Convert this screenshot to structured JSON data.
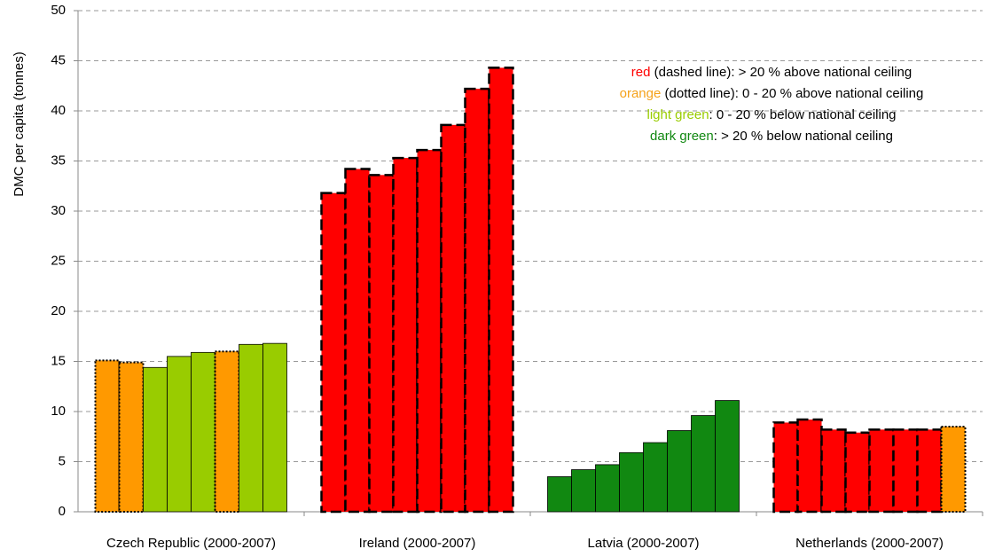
{
  "chart_data": {
    "type": "bar",
    "y_label": "DMC per capita (tonnes)",
    "categories": [
      "Czech Republic (2000-2007)",
      "Ireland (2000-2007)",
      "Latvia (2000-2007)",
      "Netherlands (2000-2007)"
    ],
    "groups": [
      {
        "values": [
          15.1,
          14.9,
          14.4,
          15.5,
          15.9,
          16.0,
          16.7,
          16.8
        ],
        "colors": [
          "#ff9900",
          "#ff9900",
          "#99cc00",
          "#99cc00",
          "#99cc00",
          "#ff9900",
          "#99cc00",
          "#99cc00"
        ]
      },
      {
        "values": [
          31.8,
          34.2,
          33.6,
          35.3,
          36.1,
          38.6,
          42.2,
          44.3
        ],
        "colors": [
          "#ff0000",
          "#ff0000",
          "#ff0000",
          "#ff0000",
          "#ff0000",
          "#ff0000",
          "#ff0000",
          "#ff0000"
        ]
      },
      {
        "values": [
          3.5,
          4.2,
          4.7,
          5.9,
          6.9,
          8.1,
          9.6,
          11.1
        ],
        "colors": [
          "#118811",
          "#118811",
          "#118811",
          "#118811",
          "#118811",
          "#118811",
          "#118811",
          "#118811"
        ]
      },
      {
        "values": [
          8.9,
          9.2,
          8.2,
          7.9,
          8.2,
          8.2,
          8.2,
          8.5
        ],
        "colors": [
          "#ff0000",
          "#ff0000",
          "#ff0000",
          "#ff0000",
          "#ff0000",
          "#ff0000",
          "#ff0000",
          "#ff9900"
        ]
      }
    ],
    "legend": [
      {
        "word": "red",
        "text": " (dashed line): > 20 % above national ceiling",
        "text_color": "#ff0000",
        "fill": "#ff0000",
        "border": "dashed"
      },
      {
        "word": "orange",
        "text": " (dotted line): 0 - 20 % above national ceiling",
        "text_color": "#f5a21b",
        "fill": "#ff9900",
        "border": "dotted"
      },
      {
        "word": "light green",
        "text": ": 0 - 20 % below national ceiling",
        "text_color": "#99cc00",
        "fill": "#99cc00",
        "border": "solid"
      },
      {
        "word": "dark green",
        "text": ": > 20 % below national ceiling",
        "text_color": "#118811",
        "fill": "#118811",
        "border": "solid"
      }
    ],
    "ylim": [
      0,
      50
    ],
    "yticks": [
      0,
      5,
      10,
      15,
      20,
      25,
      30,
      35,
      40,
      45,
      50
    ],
    "grid": true
  }
}
